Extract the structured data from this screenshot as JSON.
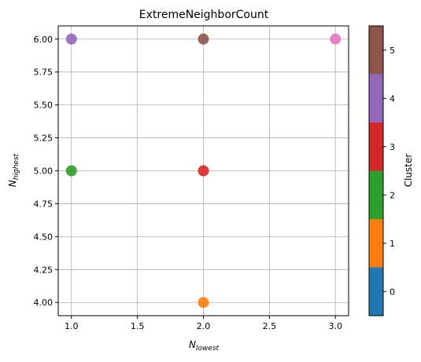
{
  "chart_data": {
    "type": "scatter",
    "title": "ExtremeNeighborCount",
    "xlabel_main": "N",
    "xlabel_sub": "lowest",
    "ylabel_main": "N",
    "ylabel_sub": "highest",
    "xlim": [
      0.9,
      3.1
    ],
    "ylim": [
      3.9,
      6.1
    ],
    "xticks": [
      "1.0",
      "1.5",
      "2.0",
      "2.5",
      "3.0"
    ],
    "yticks": [
      "4.00",
      "4.25",
      "4.50",
      "4.75",
      "5.00",
      "5.25",
      "5.50",
      "5.75",
      "6.00"
    ],
    "grid": true,
    "points": [
      {
        "x": 2.0,
        "y": 4.0,
        "cluster": 1
      },
      {
        "x": 1.0,
        "y": 5.0,
        "cluster": 2
      },
      {
        "x": 2.0,
        "y": 5.0,
        "cluster": 3
      },
      {
        "x": 1.0,
        "y": 6.0,
        "cluster": 4
      },
      {
        "x": 2.0,
        "y": 6.0,
        "cluster": 5
      },
      {
        "x": 3.0,
        "y": 6.0,
        "cluster": 6
      }
    ],
    "colorbar": {
      "label": "Cluster",
      "range": [
        -0.5,
        5.5
      ],
      "ticks": [
        "0",
        "1",
        "2",
        "3",
        "4",
        "5"
      ],
      "colors": [
        "#1f77b4",
        "#ff7f0e",
        "#2ca02c",
        "#d62728",
        "#9467bd",
        "#8c564b"
      ]
    },
    "point_colors": {
      "1": "#ff7f0e",
      "2": "#2ca02c",
      "3": "#d62728",
      "4": "#9467bd",
      "5": "#8c564b",
      "6": "#e377c2"
    }
  }
}
